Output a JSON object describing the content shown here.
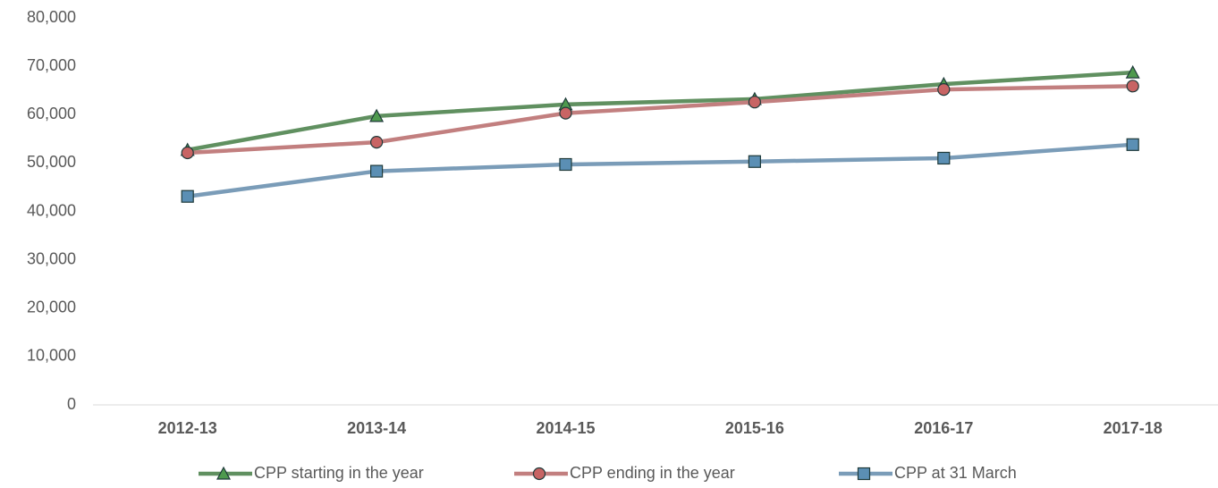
{
  "chart_data": {
    "type": "line",
    "categories": [
      "2012-13",
      "2013-14",
      "2014-15",
      "2015-16",
      "2016-17",
      "2017-18"
    ],
    "series": [
      {
        "name": "CPP starting in the year",
        "color": "#609060",
        "marker": "triangle",
        "marker_color": "#4e9a4e",
        "values": [
          52700,
          59700,
          62100,
          63200,
          66300,
          68700
        ]
      },
      {
        "name": "CPP ending in the year",
        "color": "#c27f7f",
        "marker": "circle",
        "marker_color": "#c86464",
        "values": [
          52100,
          54300,
          60300,
          62600,
          65200,
          65900
        ]
      },
      {
        "name": "CPP at 31 March",
        "color": "#7a9cb8",
        "marker": "square",
        "marker_color": "#5b8fb4",
        "values": [
          43100,
          48300,
          49700,
          50300,
          51000,
          53800
        ]
      }
    ],
    "ylim": [
      0,
      80000
    ],
    "yticks": [
      0,
      {
        "value": 10000,
        "label": "10,000"
      },
      {
        "value": 20000,
        "label": "20,000"
      },
      {
        "value": 30000,
        "label": "30,000"
      },
      {
        "value": 40000,
        "label": "40,000"
      },
      {
        "value": 50000,
        "label": "50,000"
      },
      {
        "value": 60000,
        "label": "60,000"
      },
      {
        "value": 70000,
        "label": "70,000"
      },
      {
        "value": 80000,
        "label": "80,000"
      }
    ],
    "grid": false,
    "legend": "bottom"
  }
}
